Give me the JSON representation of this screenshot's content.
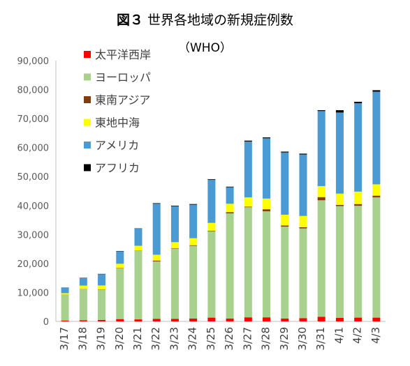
{
  "title": {
    "figure_label": "図３",
    "text": "世界各地域の新規症例数",
    "subtitle": "（WHO）"
  },
  "chart_data": {
    "type": "bar",
    "stacked": true,
    "title": "図３ 世界各地域の新規症例数",
    "subtitle": "（WHO）",
    "xlabel": "",
    "ylabel": "",
    "ylim": [
      0,
      90000
    ],
    "yticks": [
      0,
      10000,
      20000,
      30000,
      40000,
      50000,
      60000,
      70000,
      80000,
      90000
    ],
    "ytick_labels": [
      "0",
      "10,000",
      "20,000",
      "30,000",
      "40,000",
      "50,000",
      "60,000",
      "70,000",
      "80,000",
      "90,000"
    ],
    "grid": false,
    "legend_position": "top-left",
    "categories": [
      "3/17",
      "3/18",
      "3/19",
      "3/20",
      "3/21",
      "3/22",
      "3/23",
      "3/24",
      "3/25",
      "3/26",
      "3/27",
      "3/28",
      "3/29",
      "3/30",
      "3/31",
      "4/1",
      "4/2",
      "4/3"
    ],
    "series": [
      {
        "name": "太平洋西岸",
        "color": "#ff0000",
        "values": [
          300,
          400,
          500,
          800,
          700,
          900,
          900,
          1000,
          1300,
          1000,
          1400,
          1400,
          1000,
          1100,
          1600,
          1200,
          1300,
          1300
        ]
      },
      {
        "name": "ヨーロッパ",
        "color": "#a9d18e",
        "values": [
          8900,
          10800,
          10500,
          17500,
          23600,
          19800,
          24200,
          25100,
          29800,
          36300,
          38000,
          36600,
          31700,
          31000,
          40200,
          38600,
          38600,
          41500
        ]
      },
      {
        "name": "東南アジア",
        "color": "#843c0c",
        "values": [
          50,
          50,
          100,
          100,
          100,
          300,
          150,
          200,
          200,
          400,
          200,
          700,
          400,
          400,
          1100,
          400,
          600,
          600
        ]
      },
      {
        "name": "東地中海",
        "color": "#ffff00",
        "values": [
          500,
          1100,
          1300,
          1500,
          1700,
          2000,
          2100,
          2400,
          2700,
          2900,
          3200,
          3700,
          3700,
          3900,
          3800,
          3900,
          4300,
          3900
        ]
      },
      {
        "name": "アメリカ",
        "color": "#4a9ad4",
        "values": [
          1900,
          2600,
          3900,
          4300,
          5900,
          17600,
          12400,
          11600,
          14900,
          5700,
          19300,
          20800,
          21500,
          21200,
          25900,
          28000,
          30500,
          32000
        ]
      },
      {
        "name": "アフリカ",
        "color": "#000000",
        "values": [
          50,
          100,
          100,
          100,
          100,
          200,
          200,
          200,
          200,
          200,
          300,
          300,
          300,
          300,
          300,
          800,
          500,
          500
        ]
      }
    ]
  }
}
